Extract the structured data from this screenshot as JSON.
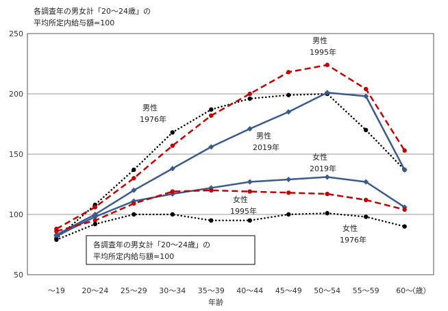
{
  "chart_data": {
    "type": "line",
    "title_lines": [
      "各調査年の男女計「20～24歳」の",
      "平均所定内給与額=100"
    ],
    "box_note_lines": [
      "各調査年の男女計「20～24歳」の",
      "平均所定内給与額=100"
    ],
    "xlabel": "年齢",
    "x_unit": "（歳）",
    "ylim": [
      50,
      250
    ],
    "yticks": [
      50,
      100,
      150,
      200,
      250
    ],
    "grid": true,
    "categories": [
      "～19",
      "20～24",
      "25～29",
      "30～34",
      "35～39",
      "40～44",
      "45～49",
      "50～54",
      "55～59",
      "60～"
    ],
    "series": [
      {
        "name": "男性 1976年",
        "label_lines": [
          "男性",
          "1976年"
        ],
        "color": "#000000",
        "style": "dotted",
        "values": [
          80,
          108,
          137,
          168,
          187,
          196,
          199,
          200,
          170,
          137
        ]
      },
      {
        "name": "男性 1995年",
        "label_lines": [
          "男性",
          "1995年"
        ],
        "color": "#c00000",
        "style": "dashed",
        "values": [
          88,
          106,
          130,
          157,
          182,
          200,
          218,
          224,
          204,
          153
        ]
      },
      {
        "name": "男性 2019年",
        "label_lines": [
          "男性",
          "2019年"
        ],
        "color": "#3a5a8c",
        "style": "solid",
        "values": [
          83,
          100,
          120,
          138,
          156,
          171,
          185,
          201,
          198,
          137
        ]
      },
      {
        "name": "女性 2019年",
        "label_lines": [
          "女性",
          "2019年"
        ],
        "color": "#3a5a8c",
        "style": "solid",
        "values": [
          82,
          98,
          111,
          117,
          122,
          127,
          129,
          131,
          127,
          106
        ]
      },
      {
        "name": "女性 1995年",
        "label_lines": [
          "女性",
          "1995年"
        ],
        "color": "#c00000",
        "style": "dashed",
        "values": [
          86,
          95,
          109,
          119,
          120,
          119,
          118,
          117,
          112,
          104
        ]
      },
      {
        "name": "女性 1976年",
        "label_lines": [
          "女性",
          "1976年"
        ],
        "color": "#000000",
        "style": "dotted",
        "values": [
          79,
          92,
          100,
          100,
          95,
          95,
          100,
          101,
          98,
          90
        ]
      }
    ]
  }
}
